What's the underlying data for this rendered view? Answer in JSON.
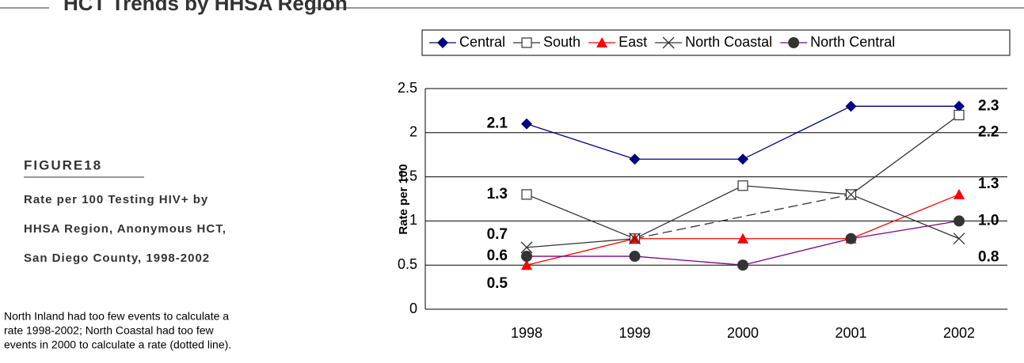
{
  "chart_data": {
    "type": "line",
    "title": "HCT Trends by HHSA Region",
    "figure_label": "FIGURE18",
    "subtitle": [
      "Rate per 100 Testing HIV+ by",
      "HHSA Region, Anonymous HCT,",
      "San Diego County, 1998-2002"
    ],
    "note": [
      "North Inland had too few events to calculate a",
      "rate 1998-2002; North Coastal had too few",
      "events in 2000 to calculate a rate (dotted line)."
    ],
    "y_label": "Rate per 100",
    "categories": [
      "1998",
      "1999",
      "2000",
      "2001",
      "2002"
    ],
    "ylim": [
      0,
      2.5
    ],
    "yticks": [
      0,
      0.5,
      1,
      1.5,
      2,
      2.5
    ],
    "grid": true,
    "legend": "top",
    "series": [
      {
        "name": "Central",
        "color": "#000080",
        "marker": "diamond",
        "marker_color": "#000080",
        "values": [
          2.1,
          1.7,
          1.7,
          2.3,
          2.3
        ],
        "value_labels": [
          "2.1",
          null,
          null,
          null,
          "2.3"
        ]
      },
      {
        "name": "South",
        "color": "#333333",
        "marker": "square",
        "marker_color": "#333333",
        "values": [
          1.3,
          0.8,
          1.4,
          1.3,
          2.2
        ],
        "value_labels": [
          "1.3",
          null,
          null,
          null,
          "2.2"
        ]
      },
      {
        "name": "East",
        "color": "#ff0000",
        "marker": "triangle",
        "marker_color": "#ff0000",
        "values": [
          0.5,
          0.8,
          0.8,
          0.8,
          1.3
        ],
        "value_labels": [
          "0.5",
          null,
          null,
          null,
          "1.3"
        ]
      },
      {
        "name": "North Coastal",
        "color": "#333333",
        "marker": "cross",
        "marker_color": "#333333",
        "gap_line": "dashed",
        "values": [
          0.7,
          0.8,
          null,
          1.3,
          0.8
        ],
        "value_labels": [
          "0.7",
          null,
          null,
          null,
          "0.8"
        ]
      },
      {
        "name": "North Central",
        "color": "#800080",
        "marker": "circle",
        "marker_color": "#333333",
        "values": [
          0.6,
          0.6,
          0.5,
          0.8,
          1.0
        ],
        "value_labels": [
          "0.6",
          null,
          null,
          null,
          "1.0"
        ]
      }
    ]
  }
}
